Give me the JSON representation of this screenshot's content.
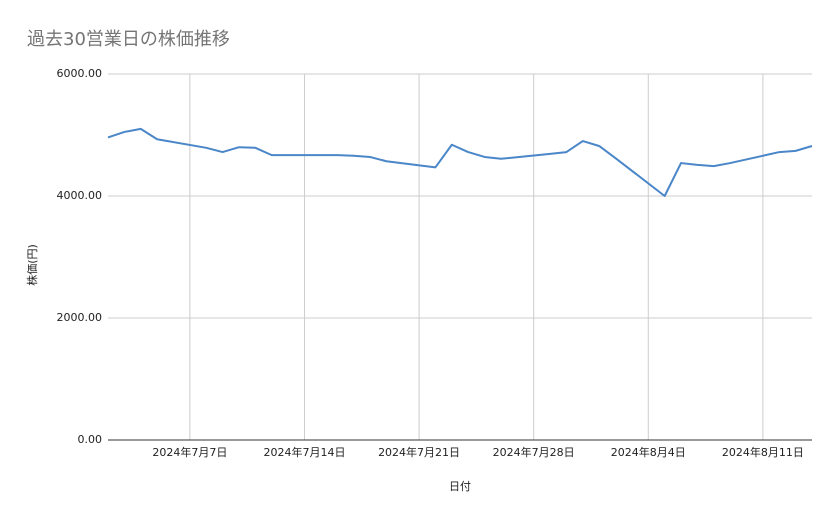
{
  "chart_data": {
    "type": "line",
    "title": "過去30営業日の株価推移",
    "xlabel": "日付",
    "ylabel": "株価(円)",
    "x": [
      "2024-07-02",
      "2024-07-03",
      "2024-07-04",
      "2024-07-05",
      "2024-07-08",
      "2024-07-09",
      "2024-07-10",
      "2024-07-11",
      "2024-07-12",
      "2024-07-15",
      "2024-07-16",
      "2024-07-17",
      "2024-07-18",
      "2024-07-19",
      "2024-07-22",
      "2024-07-23",
      "2024-07-24",
      "2024-07-25",
      "2024-07-26",
      "2024-07-29",
      "2024-07-30",
      "2024-07-31",
      "2024-08-01",
      "2024-08-02",
      "2024-08-05",
      "2024-08-06",
      "2024-08-07",
      "2024-08-08",
      "2024-08-09",
      "2024-08-12",
      "2024-08-13",
      "2024-08-14"
    ],
    "values": [
      4960,
      5050,
      5100,
      4930,
      4790,
      4720,
      4800,
      4790,
      4670,
      4670,
      4670,
      4660,
      4640,
      4570,
      4470,
      4840,
      4720,
      4640,
      4610,
      4690,
      4720,
      4900,
      4820,
      4620,
      4000,
      4540,
      4510,
      4490,
      4540,
      4720,
      4740,
      4820
    ],
    "color": "#4a86c8",
    "xlim": [
      "2024-07-02",
      "2024-08-14"
    ],
    "xticks": [
      {
        "value": "2024-07-07",
        "label": "2024年7月7日"
      },
      {
        "value": "2024-07-14",
        "label": "2024年7月14日"
      },
      {
        "value": "2024-07-21",
        "label": "2024年7月21日"
      },
      {
        "value": "2024-07-28",
        "label": "2024年7月28日"
      },
      {
        "value": "2024-08-04",
        "label": "2024年8月4日"
      },
      {
        "value": "2024-08-11",
        "label": "2024年8月11日"
      }
    ],
    "ylim": [
      0,
      6000
    ],
    "yticks": [
      {
        "value": 0,
        "label": "0.00"
      },
      {
        "value": 2000,
        "label": "2000.00"
      },
      {
        "value": 4000,
        "label": "4000.00"
      },
      {
        "value": 6000,
        "label": "6000.00"
      }
    ],
    "grid": true
  }
}
